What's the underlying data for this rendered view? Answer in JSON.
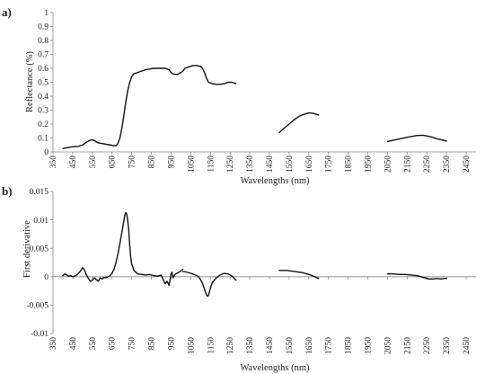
{
  "chart_data": [
    {
      "type": "line",
      "panel_label": "a)",
      "xlabel": "Wavelengths (nm)",
      "ylabel": "Reflectance (%)",
      "xlim": [
        350,
        2500
      ],
      "ylim": [
        0,
        1
      ],
      "x_ticks": [
        350,
        450,
        550,
        650,
        750,
        850,
        950,
        1050,
        1150,
        1250,
        1350,
        1450,
        1550,
        1650,
        1750,
        1850,
        1950,
        2050,
        2150,
        2250,
        2350,
        2450
      ],
      "y_ticks": [
        0,
        0.1,
        0.2,
        0.3,
        0.4,
        0.5,
        0.6,
        0.7,
        0.8,
        0.9,
        1
      ],
      "y_tick_labels": [
        "0",
        "0.1",
        "0.2",
        "0.3",
        "0.4",
        "0.5",
        "0.6",
        "0.7",
        "0.8",
        "0.9",
        "1"
      ],
      "grid": false,
      "series": [
        {
          "segments": [
            {
              "x": [
                400,
                420,
                440,
                460,
                480,
                500,
                520,
                540,
                550,
                560,
                570,
                580,
                600,
                620,
                640,
                660,
                670,
                680,
                690,
                700,
                710,
                720,
                730,
                740,
                750,
                760,
                780,
                800,
                820,
                840,
                860,
                880,
                900,
                920,
                940,
                950,
                960,
                980,
                1000,
                1010
              ],
              "y": [
                0.025,
                0.03,
                0.035,
                0.038,
                0.04,
                0.05,
                0.07,
                0.085,
                0.087,
                0.082,
                0.072,
                0.065,
                0.06,
                0.055,
                0.05,
                0.045,
                0.045,
                0.06,
                0.1,
                0.17,
                0.26,
                0.36,
                0.44,
                0.5,
                0.54,
                0.56,
                0.57,
                0.58,
                0.59,
                0.595,
                0.6,
                0.6,
                0.6,
                0.6,
                0.59,
                0.57,
                0.56,
                0.555,
                0.57,
                0.58
              ]
            },
            {
              "x": [
                1010,
                1020,
                1040,
                1060,
                1080,
                1100,
                1110,
                1120,
                1130,
                1140,
                1160,
                1180,
                1200,
                1220,
                1240,
                1260,
                1280
              ],
              "y": [
                0.58,
                0.6,
                0.61,
                0.62,
                0.62,
                0.615,
                0.6,
                0.57,
                0.53,
                0.5,
                0.49,
                0.485,
                0.485,
                0.49,
                0.5,
                0.5,
                0.49
              ]
            },
            {
              "x": [
                1500,
                1525,
                1550,
                1575,
                1600,
                1625,
                1650,
                1670,
                1690,
                1700
              ],
              "y": [
                0.14,
                0.17,
                0.2,
                0.23,
                0.255,
                0.27,
                0.28,
                0.278,
                0.27,
                0.265
              ]
            },
            {
              "x": [
                2050,
                2100,
                2150,
                2200,
                2230,
                2250,
                2280,
                2300,
                2330,
                2350
              ],
              "y": [
                0.075,
                0.09,
                0.105,
                0.118,
                0.12,
                0.115,
                0.105,
                0.095,
                0.085,
                0.078
              ]
            }
          ]
        }
      ]
    },
    {
      "type": "line",
      "panel_label": "b)",
      "xlabel": "Wavelengths (nm)",
      "ylabel": "First derivative",
      "xlim": [
        350,
        2500
      ],
      "ylim": [
        -0.01,
        0.015
      ],
      "x_ticks": [
        350,
        450,
        550,
        650,
        750,
        850,
        950,
        1050,
        1150,
        1250,
        1350,
        1450,
        1550,
        1650,
        1750,
        1850,
        1950,
        2050,
        2150,
        2250,
        2350,
        2450
      ],
      "y_ticks": [
        -0.01,
        -0.005,
        0,
        0.005,
        0.01,
        0.015
      ],
      "y_tick_labels": [
        "-0.01",
        "-0.005",
        "0",
        "0.005",
        "0.01",
        "0.015"
      ],
      "grid": false,
      "series": [
        {
          "segments": [
            {
              "x": [
                400,
                410,
                420,
                430,
                440,
                450,
                460,
                470,
                480,
                490,
                500,
                510,
                520,
                530,
                540,
                550,
                560,
                570,
                580,
                590,
                600,
                610,
                620,
                630,
                640,
                650,
                660,
                670,
                680,
                690,
                700,
                710,
                715,
                720,
                725,
                730,
                735,
                740,
                745,
                750,
                755,
                760,
                770,
                780,
                800,
                820,
                840,
                860,
                880,
                900,
                910,
                920,
                930,
                940,
                950,
                955,
                960,
                970,
                980,
                990,
                1000,
                1010
              ],
              "y": [
                0.0002,
                0.0005,
                0.0003,
                0.0001,
                0.0002,
                0.0,
                0.0001,
                0.0003,
                0.0006,
                0.001,
                0.0016,
                0.0012,
                0.0003,
                -0.0003,
                -0.0008,
                -0.0006,
                -0.0002,
                -0.0005,
                -0.0008,
                -0.0002,
                -0.0004,
                -0.0001,
                -0.0002,
                0.0,
                0.0002,
                0.0006,
                0.0013,
                0.0025,
                0.004,
                0.0058,
                0.0078,
                0.0098,
                0.0108,
                0.0113,
                0.011,
                0.0098,
                0.0082,
                0.0055,
                0.0035,
                0.0022,
                0.0018,
                0.0012,
                0.0008,
                0.0005,
                0.0004,
                0.0003,
                0.0004,
                0.0002,
                0.0001,
                0.0003,
                -0.0005,
                -0.0012,
                -0.0008,
                -0.0015,
                0.0005,
                0.0008,
                -0.0002,
                0.0004,
                0.0006,
                0.0008,
                0.001,
                0.0013
              ]
            },
            {
              "x": [
                1010,
                1020,
                1040,
                1060,
                1080,
                1090,
                1100,
                1110,
                1120,
                1130,
                1135,
                1140,
                1150,
                1160,
                1180,
                1200,
                1220,
                1240,
                1260,
                1280
              ],
              "y": [
                0.0009,
                0.0009,
                0.0007,
                0.0005,
                0.0002,
                0.0,
                -0.0005,
                -0.0012,
                -0.0022,
                -0.0032,
                -0.0034,
                -0.0033,
                -0.002,
                -0.001,
                -0.0002,
                0.0003,
                0.0006,
                0.0005,
                0.0001,
                -0.0006
              ]
            },
            {
              "x": [
                1500,
                1520,
                1540,
                1560,
                1580,
                1600,
                1620,
                1640,
                1660,
                1680,
                1700
              ],
              "y": [
                0.0011,
                0.0011,
                0.0011,
                0.001,
                0.0009,
                0.0008,
                0.0007,
                0.0005,
                0.0003,
                0.0,
                -0.0003
              ]
            },
            {
              "x": [
                2050,
                2080,
                2110,
                2140,
                2170,
                2200,
                2220,
                2240,
                2260,
                2280,
                2300,
                2320,
                2340,
                2350
              ],
              "y": [
                0.0005,
                0.0005,
                0.0004,
                0.0004,
                0.0003,
                0.0002,
                0.0,
                -0.0002,
                -0.0004,
                -0.0004,
                -0.0003,
                -0.0004,
                -0.0003,
                -0.0003
              ]
            }
          ]
        }
      ]
    }
  ]
}
